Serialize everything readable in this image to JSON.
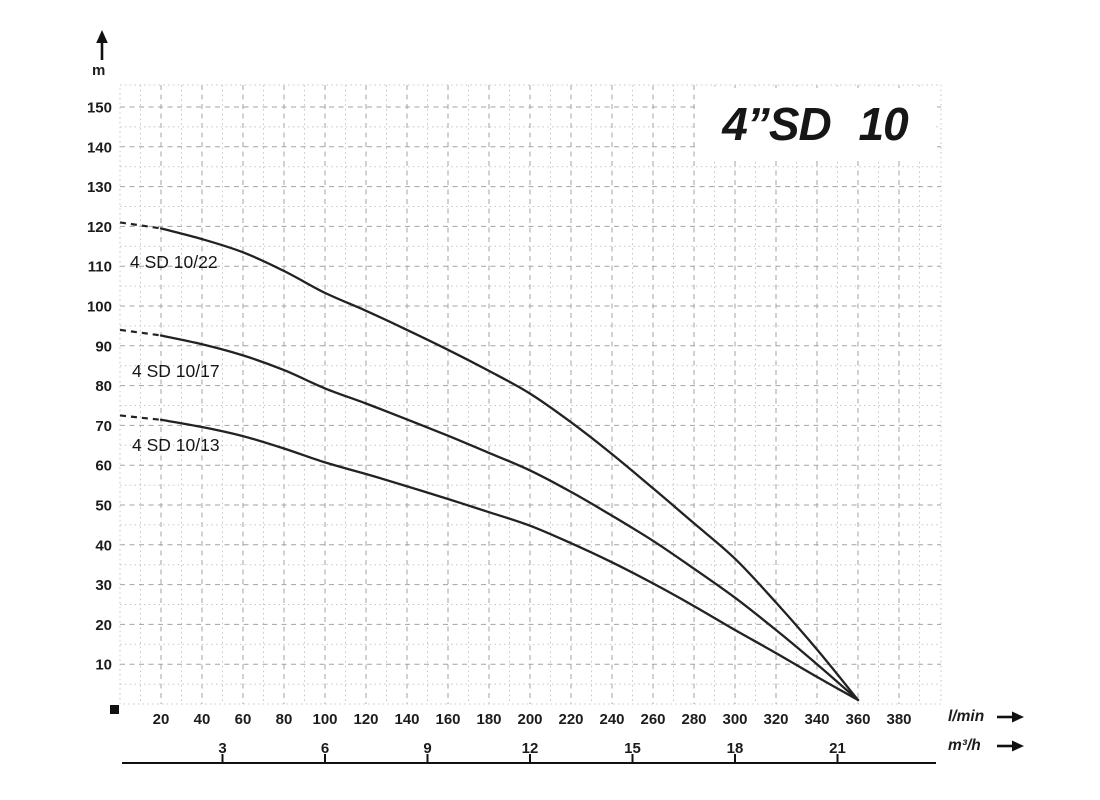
{
  "title": "4”SD 10",
  "y_axis": {
    "unit": "m",
    "ticks": [
      10,
      20,
      30,
      40,
      50,
      60,
      70,
      80,
      90,
      100,
      110,
      120,
      130,
      140,
      150
    ]
  },
  "x_axis_lmin": {
    "unit": "l/min",
    "ticks": [
      20,
      40,
      60,
      80,
      100,
      120,
      140,
      160,
      180,
      200,
      220,
      240,
      260,
      280,
      300,
      320,
      340,
      360,
      380
    ]
  },
  "x_axis_m3h": {
    "unit": "m³/h",
    "ticks": [
      3,
      6,
      9,
      12,
      15,
      18,
      21
    ]
  },
  "chart_data": {
    "type": "line",
    "title": "4”SD 10",
    "ylabel": "m",
    "xlabel": "l/min",
    "x2label": "m³/h",
    "xlim": [
      0,
      400
    ],
    "ylim": [
      0,
      155
    ],
    "grid": {
      "major_x_lmin": 20,
      "minor_x_lmin": 10,
      "major_y_m": 10,
      "minor_y_m": 5,
      "major_style": "dashed",
      "minor_style": "dotted"
    },
    "legend_position": "labels at curve start, left side",
    "dashed_segment_below_lmin": 20,
    "convergence_point": [
      360,
      1
    ],
    "series": [
      {
        "name": "4 SD 10/22",
        "points": [
          [
            0,
            121
          ],
          [
            20,
            119.5
          ],
          [
            40,
            116.8
          ],
          [
            60,
            113.5
          ],
          [
            80,
            108.8
          ],
          [
            100,
            103.3
          ],
          [
            120,
            98.8
          ],
          [
            140,
            94
          ],
          [
            160,
            89
          ],
          [
            180,
            83.7
          ],
          [
            200,
            78
          ],
          [
            220,
            70.8
          ],
          [
            240,
            62.8
          ],
          [
            260,
            54.2
          ],
          [
            280,
            45.4
          ],
          [
            300,
            36.5
          ],
          [
            320,
            25.5
          ],
          [
            340,
            13.7
          ],
          [
            360,
            1
          ]
        ]
      },
      {
        "name": "4 SD 10/17",
        "points": [
          [
            0,
            94
          ],
          [
            20,
            92.6
          ],
          [
            40,
            90.4
          ],
          [
            60,
            87.6
          ],
          [
            80,
            83.9
          ],
          [
            100,
            79.3
          ],
          [
            120,
            75.5
          ],
          [
            140,
            71.5
          ],
          [
            160,
            67.4
          ],
          [
            180,
            63.1
          ],
          [
            200,
            58.7
          ],
          [
            220,
            53.3
          ],
          [
            240,
            47.3
          ],
          [
            260,
            41
          ],
          [
            280,
            34
          ],
          [
            300,
            26.7
          ],
          [
            320,
            18.6
          ],
          [
            340,
            10
          ],
          [
            360,
            1
          ]
        ]
      },
      {
        "name": "4 SD 10/13",
        "points": [
          [
            0,
            72.5
          ],
          [
            20,
            71.4
          ],
          [
            40,
            69.6
          ],
          [
            60,
            67.3
          ],
          [
            80,
            64.2
          ],
          [
            100,
            60.7
          ],
          [
            120,
            57.8
          ],
          [
            140,
            54.7
          ],
          [
            160,
            51.5
          ],
          [
            180,
            48.2
          ],
          [
            200,
            44.8
          ],
          [
            220,
            40.4
          ],
          [
            240,
            35.6
          ],
          [
            260,
            30.3
          ],
          [
            280,
            24.6
          ],
          [
            300,
            18.6
          ],
          [
            320,
            12.8
          ],
          [
            340,
            6.8
          ],
          [
            360,
            1
          ]
        ]
      }
    ]
  },
  "markers": {
    "origin_square": "filled black square at axes origin"
  },
  "colors": {
    "background": "#ffffff",
    "curve": "#222222",
    "grid_major": "#a3a3a3",
    "grid_minor": "#c9c9c9",
    "text": "#1c1c1c",
    "scale_line": "#111111"
  }
}
